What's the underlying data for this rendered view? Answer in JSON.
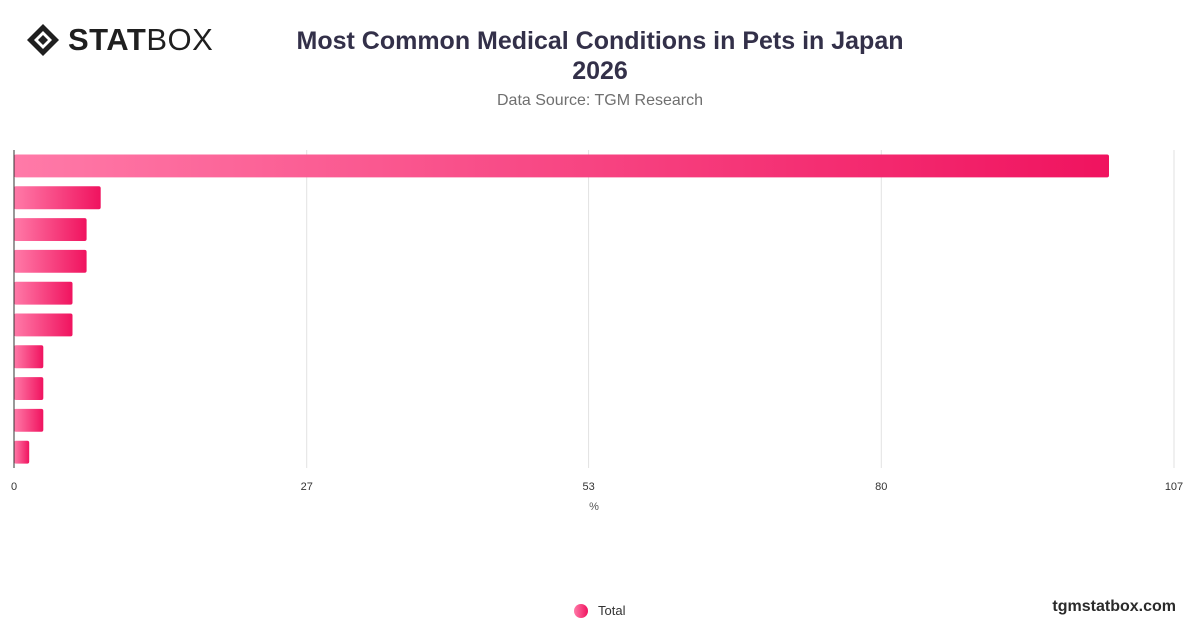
{
  "brand": {
    "logo_bold": "STAT",
    "logo_light": "BOX",
    "site": "tgmstatbox.com"
  },
  "chart_data": {
    "type": "bar",
    "orientation": "horizontal",
    "title": "Most Common Medical Conditions in Pets in Japan",
    "title_line2": "2026",
    "subtitle": "Data Source: TGM Research",
    "xlabel": "%",
    "ylabel": "",
    "xlim": [
      0,
      107
    ],
    "xticks": [
      0,
      27,
      53,
      80,
      107
    ],
    "grid": true,
    "legend_position": "bottom-center",
    "categories": [
      "",
      "",
      "",
      "",
      "",
      "",
      "",
      "",
      "",
      ""
    ],
    "series": [
      {
        "name": "Total",
        "color_start": "#ff7aa8",
        "color_end": "#f0135f",
        "values": [
          101,
          8,
          6.7,
          6.7,
          5.4,
          5.4,
          2.7,
          2.7,
          2.7,
          1.4
        ]
      }
    ]
  }
}
